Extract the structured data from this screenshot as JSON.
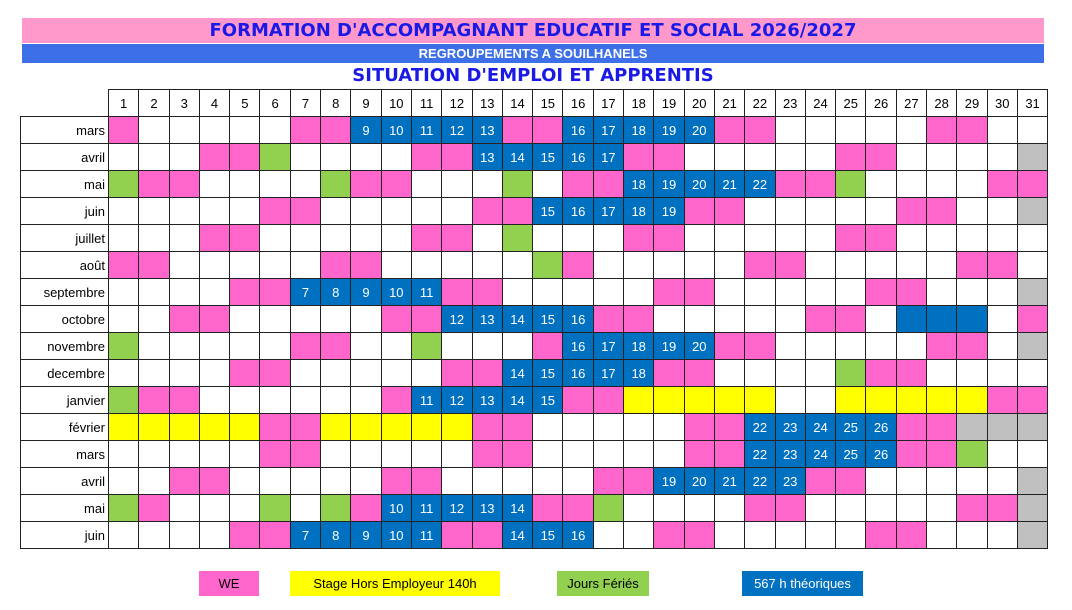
{
  "header": {
    "title": "FORMATION D'ACCOMPAGNANT EDUCATIF ET SOCIAL 2026/2027",
    "subtitle": "REGROUPEMENTS A SOUILHANELS",
    "section_title": "SITUATION D'EMPLOI ET APPRENTIS"
  },
  "colors": {
    "W": "#ff66cc",
    "F": "#92d050",
    "B": "#0070c0",
    "Y": "#ffff00",
    "G": "#c0c0c0"
  },
  "days": [
    "1",
    "2",
    "3",
    "4",
    "5",
    "6",
    "7",
    "8",
    "9",
    "10",
    "11",
    "12",
    "13",
    "14",
    "15",
    "16",
    "17",
    "18",
    "19",
    "20",
    "21",
    "22",
    "23",
    "24",
    "25",
    "26",
    "27",
    "28",
    "29",
    "30",
    "31"
  ],
  "rows": [
    {
      "month": "mars",
      "cells": [
        "W",
        "",
        "",
        "",
        "",
        "",
        "W",
        "W",
        "B9",
        "B10",
        "B11",
        "B12",
        "B13",
        "W",
        "W",
        "B16",
        "B17",
        "B18",
        "B19",
        "B20",
        "W",
        "W",
        "",
        "",
        "",
        "",
        "",
        "W",
        "W",
        "",
        ""
      ]
    },
    {
      "month": "avril",
      "cells": [
        "",
        "",
        "",
        "W",
        "W",
        "F",
        "",
        "",
        "",
        "",
        "W",
        "W",
        "B13",
        "B14",
        "B15",
        "B16",
        "B17",
        "W",
        "W",
        "",
        "",
        "",
        "",
        "",
        "W",
        "W",
        "",
        "",
        "",
        "",
        "G"
      ]
    },
    {
      "month": "mai",
      "cells": [
        "F",
        "W",
        "W",
        "",
        "",
        "",
        "",
        "F",
        "W",
        "W",
        "",
        "",
        "",
        "F",
        "",
        "W",
        "W",
        "B18",
        "B19",
        "B20",
        "B21",
        "B22",
        "W",
        "W",
        "F",
        "",
        "",
        "",
        "",
        "W",
        "W"
      ]
    },
    {
      "month": "juin",
      "cells": [
        "",
        "",
        "",
        "",
        "",
        "W",
        "W",
        "",
        "",
        "",
        "",
        "",
        "W",
        "W",
        "B15",
        "B16",
        "B17",
        "B18",
        "B19",
        "W",
        "W",
        "",
        "",
        "",
        "",
        "",
        "W",
        "W",
        "",
        "",
        "G"
      ]
    },
    {
      "month": "juillet",
      "cells": [
        "",
        "",
        "",
        "W",
        "W",
        "",
        "",
        "",
        "",
        "",
        "W",
        "W",
        "",
        "F",
        "",
        "",
        "",
        "W",
        "W",
        "",
        "",
        "",
        "",
        "",
        "W",
        "W",
        "",
        "",
        "",
        "",
        ""
      ]
    },
    {
      "month": "août",
      "cells": [
        "W",
        "W",
        "",
        "",
        "",
        "",
        "",
        "W",
        "W",
        "",
        "",
        "",
        "",
        "",
        "F",
        "W",
        "",
        "",
        "",
        "",
        "",
        "W",
        "W",
        "",
        "",
        "",
        "",
        "",
        "W",
        "W",
        ""
      ]
    },
    {
      "month": "septembre",
      "cells": [
        "",
        "",
        "",
        "",
        "W",
        "W",
        "B7",
        "B8",
        "B9",
        "B10",
        "B11",
        "W",
        "W",
        "",
        "",
        "",
        "",
        "",
        "W",
        "W",
        "",
        "",
        "",
        "",
        "",
        "W",
        "W",
        "",
        "",
        "",
        "G"
      ]
    },
    {
      "month": "octobre",
      "cells": [
        "",
        "",
        "W",
        "W",
        "",
        "",
        "",
        "",
        "",
        "W",
        "W",
        "B12",
        "B13",
        "B14",
        "B15",
        "B16",
        "W",
        "W",
        "",
        "",
        "",
        "",
        "",
        "W",
        "W",
        "",
        "B",
        "B",
        "B",
        "",
        "W"
      ]
    },
    {
      "month": "novembre",
      "cells": [
        "F",
        "",
        "",
        "",
        "",
        "",
        "W",
        "W",
        "",
        "",
        "F",
        "",
        "",
        "",
        "W",
        "B16",
        "B17",
        "B18",
        "B19",
        "B20",
        "W",
        "W",
        "",
        "",
        "",
        "",
        "",
        "W",
        "W",
        "",
        "G"
      ]
    },
    {
      "month": "decembre",
      "cells": [
        "",
        "",
        "",
        "",
        "W",
        "W",
        "",
        "",
        "",
        "",
        "",
        "W",
        "W",
        "B14",
        "B15",
        "B16",
        "B17",
        "B18",
        "W",
        "W",
        "",
        "",
        "",
        "",
        "F",
        "W",
        "W",
        "",
        "",
        "",
        ""
      ]
    },
    {
      "month": "janvier",
      "cells": [
        "F",
        "W",
        "W",
        "",
        "",
        "",
        "",
        "",
        "",
        "W",
        "B11",
        "B12",
        "B13",
        "B14",
        "B15",
        "W",
        "W",
        "Y",
        "Y",
        "Y",
        "Y",
        "Y",
        "",
        "",
        "Y",
        "Y",
        "Y",
        "Y",
        "Y",
        "W",
        "W"
      ]
    },
    {
      "month": "février",
      "cells": [
        "Y",
        "Y",
        "Y",
        "Y",
        "Y",
        "W",
        "W",
        "Y",
        "Y",
        "Y",
        "Y",
        "Y",
        "W",
        "W",
        "",
        "",
        "",
        "",
        "",
        "W",
        "W",
        "B22",
        "B23",
        "B24",
        "B25",
        "B26",
        "W",
        "W",
        "G",
        "G",
        "G"
      ]
    },
    {
      "month": "mars",
      "cells": [
        "",
        "",
        "",
        "",
        "",
        "W",
        "W",
        "",
        "",
        "",
        "",
        "",
        "W",
        "W",
        "",
        "",
        "",
        "",
        "",
        "W",
        "W",
        "B22",
        "B23",
        "B24",
        "B25",
        "B26",
        "W",
        "W",
        "F",
        "",
        ""
      ]
    },
    {
      "month": "avril",
      "cells": [
        "",
        "",
        "W",
        "W",
        "",
        "",
        "",
        "",
        "",
        "W",
        "W",
        "",
        "",
        "",
        "",
        "",
        "W",
        "W",
        "B19",
        "B20",
        "B21",
        "B22",
        "B23",
        "W",
        "W",
        "",
        "",
        "",
        "",
        "",
        "G"
      ]
    },
    {
      "month": "mai",
      "cells": [
        "F",
        "W",
        "",
        "",
        "",
        "F",
        "",
        "F",
        "W",
        "B10",
        "B11",
        "B12",
        "B13",
        "B14",
        "W",
        "W",
        "F",
        "",
        "",
        "",
        "",
        "W",
        "W",
        "",
        "",
        "",
        "",
        "",
        "W",
        "W",
        "G"
      ]
    },
    {
      "month": "juin",
      "cells": [
        "",
        "",
        "",
        "",
        "W",
        "W",
        "B7",
        "B8",
        "B9",
        "B10",
        "B11",
        "W",
        "W",
        "B14",
        "B15",
        "B16",
        "",
        "",
        "W",
        "W",
        "",
        "",
        "",
        "",
        "",
        "W",
        "W",
        "",
        "",
        "",
        "G"
      ]
    }
  ],
  "legend": {
    "we": "WE",
    "stage": "Stage Hors Employeur 140h",
    "feries": "Jours Fériés",
    "heures": "567 h théoriques"
  }
}
